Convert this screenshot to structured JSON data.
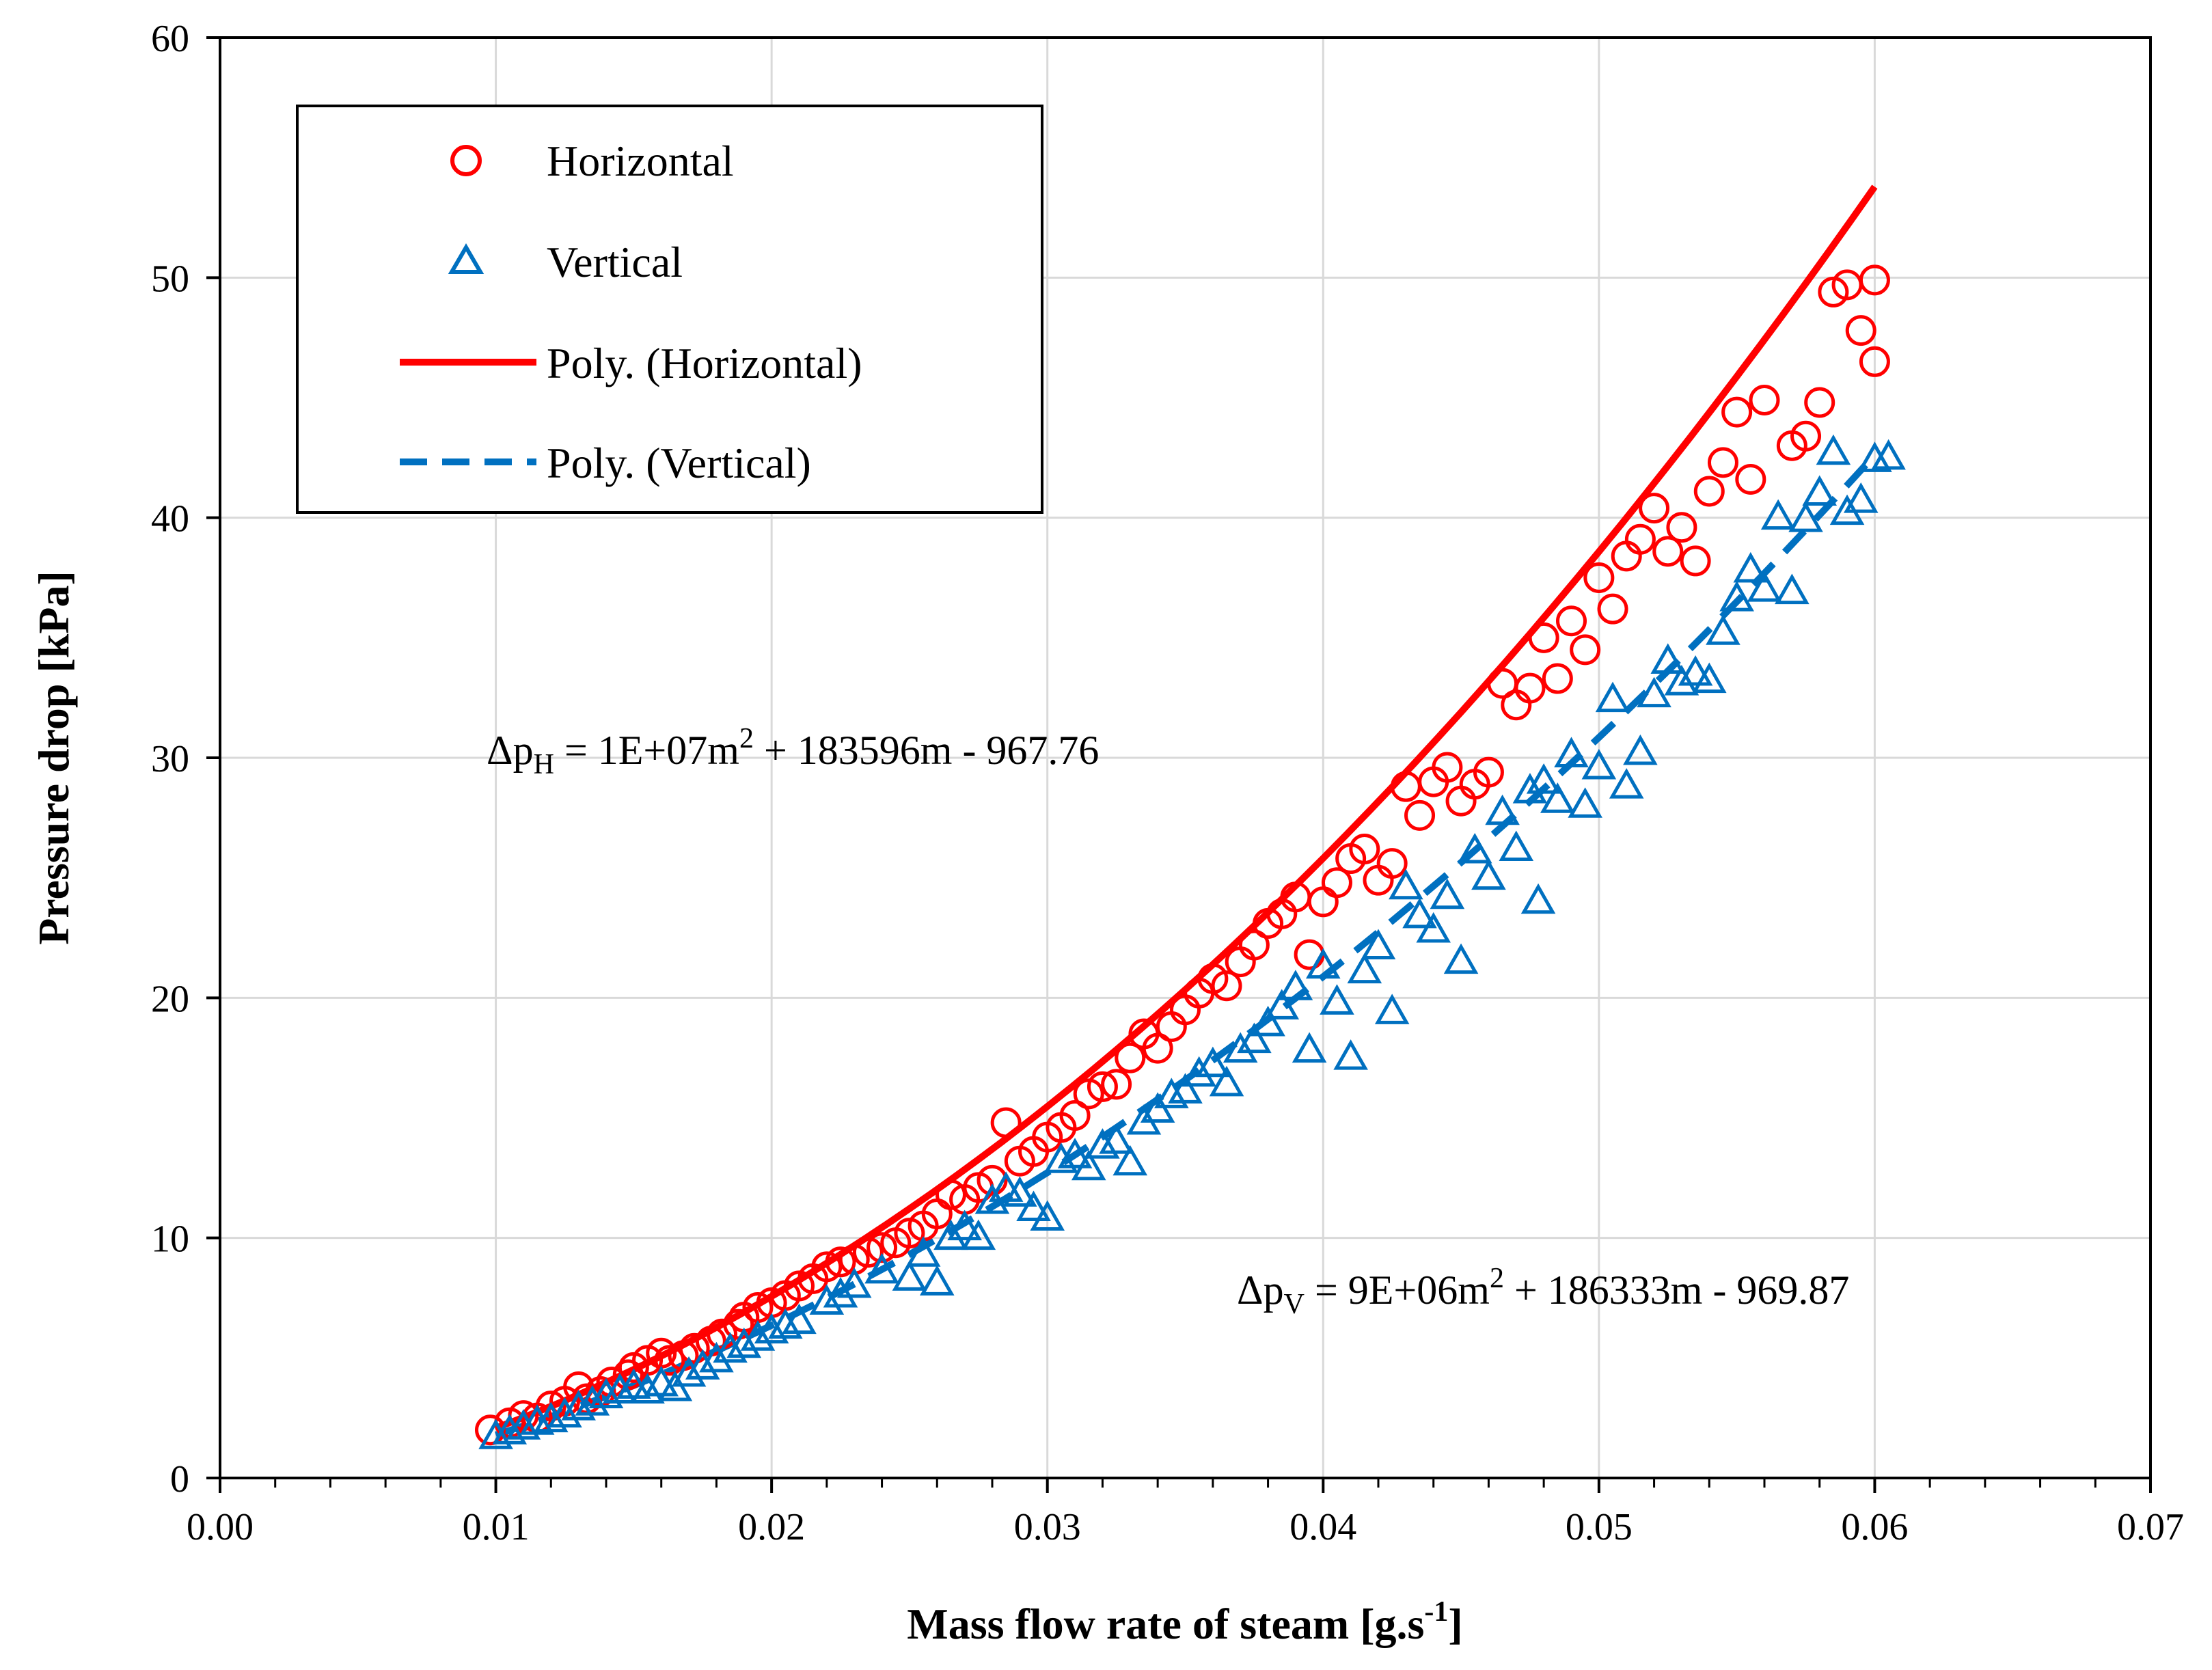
{
  "chart_data": {
    "type": "scatter",
    "xlabel": "Mass flow rate of steam [g.s",
    "xlabel_sup": "-1",
    "xlabel_end": "]",
    "ylabel": "Pressure drop [kPa]",
    "xlim": [
      0,
      0.07
    ],
    "ylim": [
      0,
      60
    ],
    "x_ticks": [
      "0.00",
      "0.01",
      "0.02",
      "0.03",
      "0.04",
      "0.05",
      "0.06",
      "0.07"
    ],
    "y_ticks": [
      "0",
      "10",
      "20",
      "30",
      "40",
      "50",
      "60"
    ],
    "grid": true,
    "legend_position": "top-left",
    "colors": {
      "horizontal": "#ff0000",
      "vertical": "#0070c0"
    },
    "legend": {
      "horizontal": "Horizontal",
      "vertical": "Vertical",
      "poly_horizontal": "Poly. (Horizontal)",
      "poly_vertical": "Poly. (Vertical)"
    },
    "equations": {
      "horizontal": {
        "lhs": "Δp",
        "sub": "H",
        "rhs_a": " = 1E+07m",
        "sup": "2",
        "rhs_b": " + 183596m - 967.76"
      },
      "vertical": {
        "lhs": "Δp",
        "sub": "V",
        "rhs_a": " = 9E+06m",
        "sup": "2",
        "rhs_b": " + 186333m - 969.87"
      }
    },
    "series": [
      {
        "name": "Horizontal",
        "marker": "circle",
        "points": [
          [
            0.0098,
            2.0
          ],
          [
            0.0105,
            2.3
          ],
          [
            0.011,
            2.6
          ],
          [
            0.0115,
            2.5
          ],
          [
            0.012,
            3.0
          ],
          [
            0.0125,
            3.2
          ],
          [
            0.013,
            3.8
          ],
          [
            0.0133,
            3.3
          ],
          [
            0.0138,
            3.6
          ],
          [
            0.0142,
            4.0
          ],
          [
            0.0148,
            4.3
          ],
          [
            0.015,
            4.6
          ],
          [
            0.0155,
            4.9
          ],
          [
            0.016,
            5.2
          ],
          [
            0.0163,
            4.9
          ],
          [
            0.0168,
            5.1
          ],
          [
            0.0172,
            5.4
          ],
          [
            0.0178,
            5.7
          ],
          [
            0.0182,
            6.0
          ],
          [
            0.0188,
            6.4
          ],
          [
            0.019,
            6.7
          ],
          [
            0.0195,
            7.1
          ],
          [
            0.02,
            7.3
          ],
          [
            0.0205,
            7.6
          ],
          [
            0.021,
            8.0
          ],
          [
            0.0215,
            8.3
          ],
          [
            0.022,
            8.8
          ],
          [
            0.0225,
            9.0
          ],
          [
            0.023,
            9.1
          ],
          [
            0.0235,
            9.4
          ],
          [
            0.024,
            9.6
          ],
          [
            0.0245,
            9.8
          ],
          [
            0.025,
            10.2
          ],
          [
            0.0255,
            10.5
          ],
          [
            0.026,
            11.0
          ],
          [
            0.0265,
            11.8
          ],
          [
            0.027,
            11.6
          ],
          [
            0.0275,
            12.1
          ],
          [
            0.028,
            12.4
          ],
          [
            0.0285,
            14.8
          ],
          [
            0.029,
            13.2
          ],
          [
            0.0295,
            13.6
          ],
          [
            0.03,
            14.2
          ],
          [
            0.0305,
            14.6
          ],
          [
            0.031,
            15.1
          ],
          [
            0.0315,
            16.0
          ],
          [
            0.032,
            16.3
          ],
          [
            0.0325,
            16.4
          ],
          [
            0.033,
            17.5
          ],
          [
            0.0335,
            18.5
          ],
          [
            0.034,
            17.9
          ],
          [
            0.0345,
            18.8
          ],
          [
            0.035,
            19.5
          ],
          [
            0.0355,
            20.2
          ],
          [
            0.036,
            20.8
          ],
          [
            0.0365,
            20.5
          ],
          [
            0.037,
            21.5
          ],
          [
            0.0375,
            22.2
          ],
          [
            0.038,
            23.1
          ],
          [
            0.0385,
            23.5
          ],
          [
            0.039,
            24.2
          ],
          [
            0.0395,
            21.8
          ],
          [
            0.04,
            24.0
          ],
          [
            0.0405,
            24.8
          ],
          [
            0.041,
            25.8
          ],
          [
            0.0415,
            26.2
          ],
          [
            0.042,
            24.9
          ],
          [
            0.0425,
            25.6
          ],
          [
            0.043,
            28.8
          ],
          [
            0.0435,
            27.6
          ],
          [
            0.044,
            29.0
          ],
          [
            0.0445,
            29.6
          ],
          [
            0.045,
            28.2
          ],
          [
            0.0455,
            28.9
          ],
          [
            0.046,
            29.4
          ],
          [
            0.0465,
            33.1
          ],
          [
            0.047,
            32.2
          ],
          [
            0.0475,
            32.9
          ],
          [
            0.048,
            35.0
          ],
          [
            0.0485,
            33.3
          ],
          [
            0.049,
            35.7
          ],
          [
            0.0495,
            34.5
          ],
          [
            0.05,
            37.5
          ],
          [
            0.0505,
            36.2
          ],
          [
            0.051,
            38.4
          ],
          [
            0.0515,
            39.1
          ],
          [
            0.052,
            40.4
          ],
          [
            0.0525,
            38.6
          ],
          [
            0.053,
            39.6
          ],
          [
            0.0535,
            38.2
          ],
          [
            0.054,
            41.1
          ],
          [
            0.0545,
            42.3
          ],
          [
            0.055,
            44.4
          ],
          [
            0.0555,
            41.6
          ],
          [
            0.056,
            44.9
          ],
          [
            0.057,
            43.0
          ],
          [
            0.0575,
            43.4
          ],
          [
            0.058,
            44.8
          ],
          [
            0.0585,
            49.4
          ],
          [
            0.059,
            49.7
          ],
          [
            0.0595,
            47.8
          ],
          [
            0.06,
            49.9
          ],
          [
            0.06,
            46.5
          ]
        ]
      },
      {
        "name": "Vertical",
        "marker": "triangle",
        "points": [
          [
            0.01,
            1.7
          ],
          [
            0.0105,
            1.9
          ],
          [
            0.011,
            2.1
          ],
          [
            0.0115,
            2.3
          ],
          [
            0.012,
            2.4
          ],
          [
            0.0125,
            2.6
          ],
          [
            0.013,
            2.9
          ],
          [
            0.0135,
            3.1
          ],
          [
            0.014,
            3.4
          ],
          [
            0.0145,
            3.6
          ],
          [
            0.015,
            3.8
          ],
          [
            0.0155,
            3.6
          ],
          [
            0.016,
            3.9
          ],
          [
            0.0165,
            3.7
          ],
          [
            0.017,
            4.3
          ],
          [
            0.0175,
            4.6
          ],
          [
            0.018,
            4.9
          ],
          [
            0.0185,
            5.3
          ],
          [
            0.019,
            5.5
          ],
          [
            0.0195,
            5.8
          ],
          [
            0.02,
            6.1
          ],
          [
            0.0205,
            6.3
          ],
          [
            0.021,
            6.5
          ],
          [
            0.022,
            7.3
          ],
          [
            0.0225,
            7.6
          ],
          [
            0.023,
            8.0
          ],
          [
            0.024,
            8.6
          ],
          [
            0.025,
            8.3
          ],
          [
            0.0255,
            9.3
          ],
          [
            0.026,
            8.1
          ],
          [
            0.0265,
            10.0
          ],
          [
            0.027,
            10.4
          ],
          [
            0.0275,
            10.0
          ],
          [
            0.028,
            11.5
          ],
          [
            0.0285,
            12.0
          ],
          [
            0.029,
            11.8
          ],
          [
            0.0295,
            11.2
          ],
          [
            0.03,
            10.8
          ],
          [
            0.0305,
            13.2
          ],
          [
            0.031,
            13.4
          ],
          [
            0.0315,
            12.9
          ],
          [
            0.032,
            13.8
          ],
          [
            0.0325,
            14.0
          ],
          [
            0.033,
            13.1
          ],
          [
            0.0335,
            14.8
          ],
          [
            0.034,
            15.3
          ],
          [
            0.0345,
            15.9
          ],
          [
            0.035,
            16.1
          ],
          [
            0.0355,
            16.8
          ],
          [
            0.036,
            17.2
          ],
          [
            0.0365,
            16.4
          ],
          [
            0.037,
            17.8
          ],
          [
            0.0375,
            18.2
          ],
          [
            0.038,
            18.9
          ],
          [
            0.0385,
            19.6
          ],
          [
            0.039,
            20.4
          ],
          [
            0.0395,
            17.8
          ],
          [
            0.04,
            21.3
          ],
          [
            0.0405,
            19.8
          ],
          [
            0.041,
            17.5
          ],
          [
            0.0415,
            21.1
          ],
          [
            0.042,
            22.1
          ],
          [
            0.0425,
            19.4
          ],
          [
            0.043,
            24.6
          ],
          [
            0.0435,
            23.4
          ],
          [
            0.044,
            22.8
          ],
          [
            0.0445,
            24.2
          ],
          [
            0.045,
            21.5
          ],
          [
            0.0455,
            26.1
          ],
          [
            0.046,
            25.0
          ],
          [
            0.0465,
            27.7
          ],
          [
            0.047,
            26.2
          ],
          [
            0.0475,
            28.6
          ],
          [
            0.0478,
            24.0
          ],
          [
            0.048,
            29.0
          ],
          [
            0.0485,
            28.2
          ],
          [
            0.049,
            30.1
          ],
          [
            0.0495,
            28.0
          ],
          [
            0.05,
            29.6
          ],
          [
            0.0505,
            32.4
          ],
          [
            0.051,
            28.8
          ],
          [
            0.0515,
            30.2
          ],
          [
            0.052,
            32.6
          ],
          [
            0.0525,
            34.0
          ],
          [
            0.053,
            33.1
          ],
          [
            0.0535,
            33.5
          ],
          [
            0.054,
            33.2
          ],
          [
            0.0545,
            35.2
          ],
          [
            0.055,
            36.6
          ],
          [
            0.0555,
            37.8
          ],
          [
            0.056,
            37.0
          ],
          [
            0.0565,
            40.0
          ],
          [
            0.057,
            36.9
          ],
          [
            0.0575,
            39.9
          ],
          [
            0.058,
            41.0
          ],
          [
            0.0585,
            42.7
          ],
          [
            0.059,
            40.2
          ],
          [
            0.0595,
            40.7
          ],
          [
            0.06,
            42.4
          ],
          [
            0.0605,
            42.5
          ]
        ]
      }
    ],
    "trendlines": [
      {
        "name": "Poly. (Horizontal)",
        "style": "solid",
        "x_range": [
          0.01,
          0.06
        ]
      },
      {
        "name": "Poly. (Vertical)",
        "style": "dashed",
        "x_range": [
          0.01,
          0.06
        ]
      }
    ]
  }
}
